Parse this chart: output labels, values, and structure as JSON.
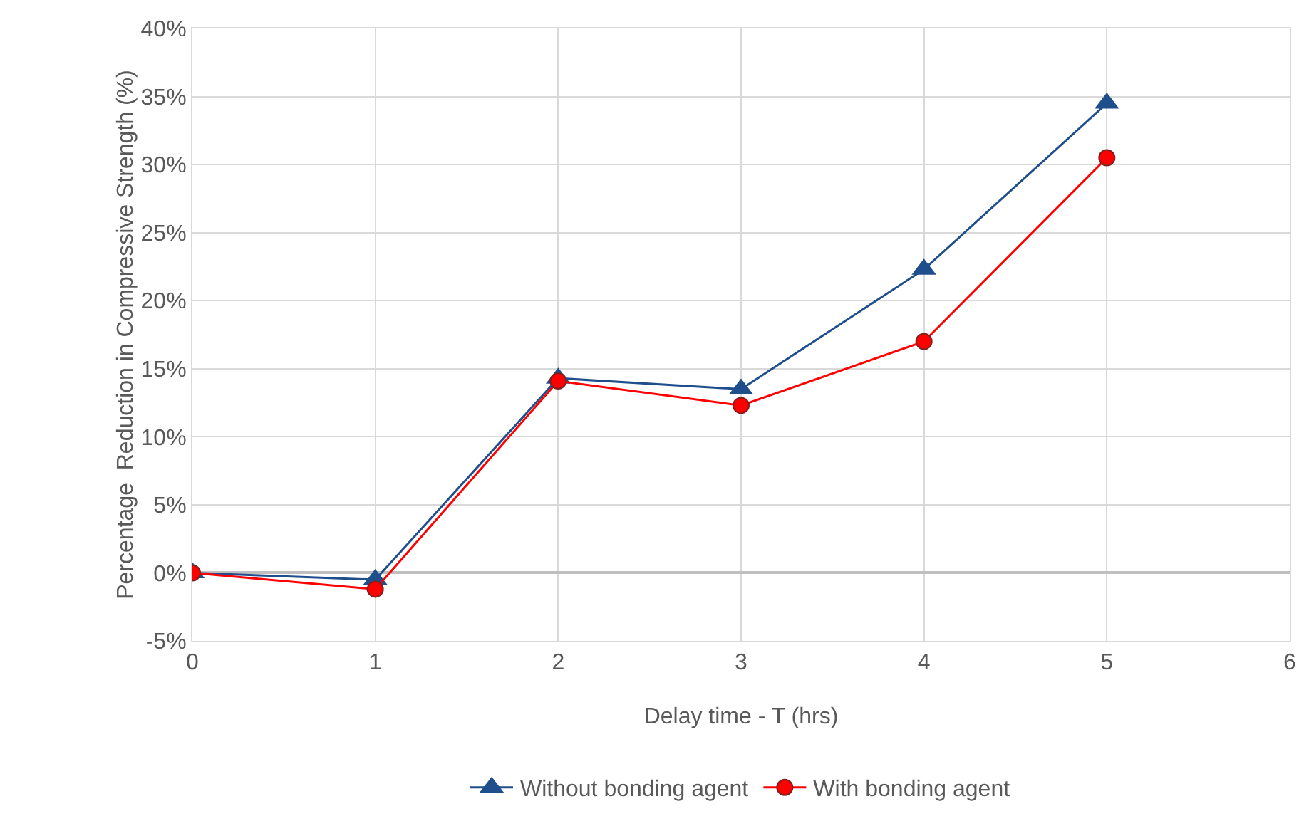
{
  "chart_data": {
    "type": "line",
    "xlabel": "Delay time - T (hrs)",
    "ylabel": "Percentage  Reduction in Compressive Strength (%)",
    "x": [
      0,
      1,
      2,
      3,
      4,
      5
    ],
    "series": [
      {
        "name": "Without bonding agent",
        "color": "#1f4e8c",
        "marker": "triangle",
        "values": [
          0,
          -0.5,
          14.3,
          13.5,
          22.3,
          34.5
        ]
      },
      {
        "name": "With bonding agent",
        "color": "#ff0000",
        "marker": "circle",
        "values": [
          0,
          -1.2,
          14.1,
          12.3,
          17.0,
          30.5
        ]
      }
    ],
    "xlim": [
      0,
      6
    ],
    "xticks": [
      0,
      1,
      2,
      3,
      4,
      5,
      6
    ],
    "ylim": [
      -5,
      40
    ],
    "yticks": [
      {
        "value": -5,
        "label": "-5%"
      },
      {
        "value": 0,
        "label": "0%"
      },
      {
        "value": 5,
        "label": "5%"
      },
      {
        "value": 10,
        "label": "10%"
      },
      {
        "value": 15,
        "label": "15%"
      },
      {
        "value": 20,
        "label": "20%"
      },
      {
        "value": 25,
        "label": "25%"
      },
      {
        "value": 30,
        "label": "30%"
      },
      {
        "value": 35,
        "label": "35%"
      },
      {
        "value": 40,
        "label": "40%"
      }
    ],
    "grid": true,
    "legend": "bottom",
    "line_style": "solid"
  }
}
